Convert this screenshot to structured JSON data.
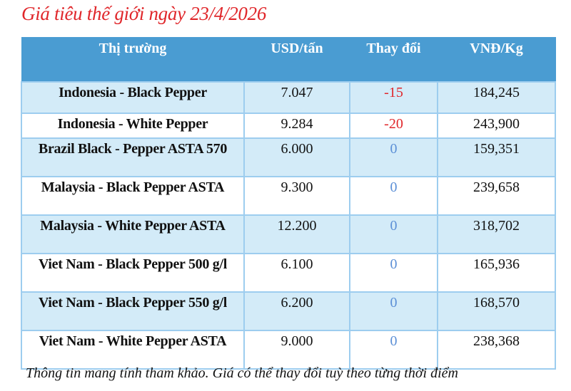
{
  "title": "Giá tiêu thế giới ngày 23/4/2026",
  "headers": [
    "Thị trường",
    "USD/tấn",
    "Thay đổi",
    "VNĐ/Kg"
  ],
  "rows": [
    {
      "market": "Indonesia - Black Pepper",
      "usd": "7.047",
      "change": "-15",
      "vnd": "184,245"
    },
    {
      "market": "Indonesia - White Pepper",
      "usd": "9.284",
      "change": "-20",
      "vnd": "243,900"
    },
    {
      "market": "Brazil Black - Pepper ASTA 570",
      "usd": "6.000",
      "change": "0",
      "vnd": "159,351"
    },
    {
      "market": "Malaysia - Black Pepper ASTA",
      "usd": "9.300",
      "change": "0",
      "vnd": "239,658"
    },
    {
      "market": "Malaysia - White Pepper ASTA",
      "usd": "12.200",
      "change": "0",
      "vnd": "318,702"
    },
    {
      "market": "Viet Nam - Black Pepper 500 g/l",
      "usd": "6.100",
      "change": "0",
      "vnd": "165,936"
    },
    {
      "market": "Viet Nam - Black Pepper 550 g/l",
      "usd": "6.200",
      "change": "0",
      "vnd": "168,570"
    },
    {
      "market": "Viet Nam - White Pepper ASTA",
      "usd": "9.000",
      "change": "0",
      "vnd": "238,368"
    }
  ],
  "note": "Thông tin mang tính tham khảo. Giá có thể thay đổi tuỳ theo từng thời điểm",
  "colors": {
    "header": "#4a9cd2",
    "negative": "#e0262a",
    "zero": "#5b8fd6",
    "alt_row": "#d3ebf8"
  }
}
